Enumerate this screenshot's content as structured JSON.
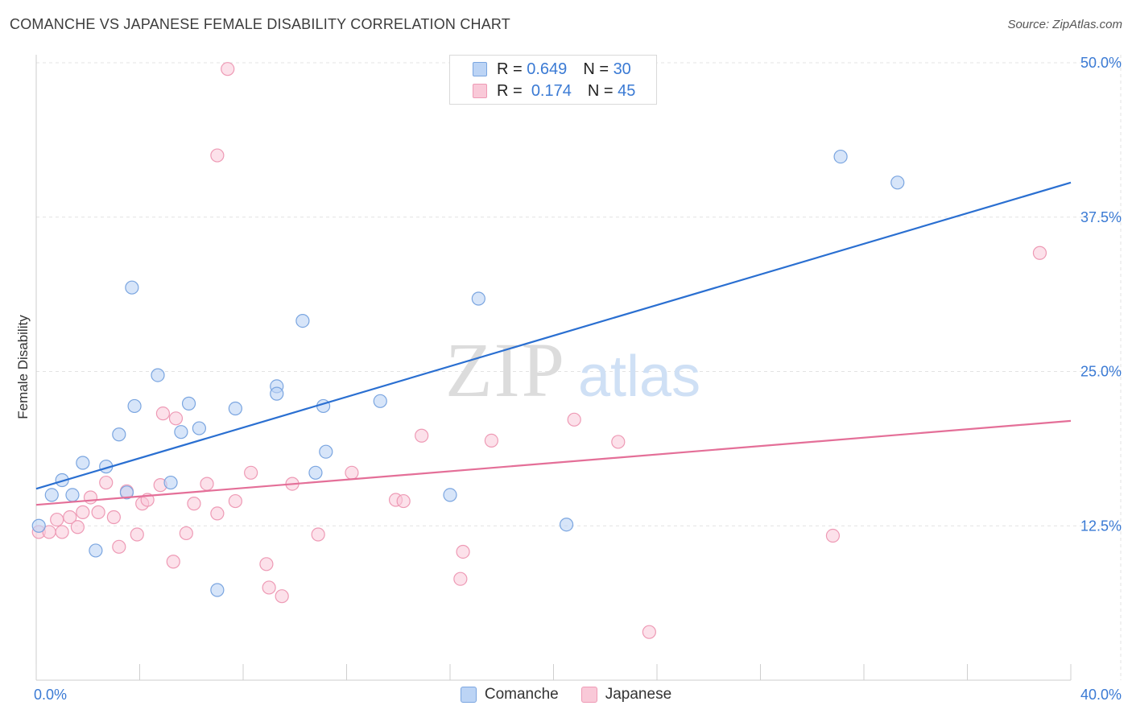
{
  "header": {
    "title": "COMANCHE VS JAPANESE FEMALE DISABILITY CORRELATION CHART",
    "source": "Source: ZipAtlas.com"
  },
  "watermark": {
    "zip": "ZIP",
    "atlas": "atlas"
  },
  "legend": {
    "items": [
      {
        "r_label": "R =",
        "r_value": "0.649",
        "n_label": "N =",
        "n_value": "30",
        "color": "#a9c8f0"
      },
      {
        "r_label": "R =",
        "r_value": "0.174",
        "n_label": "N =",
        "n_value": "45",
        "color": "#f6b5c9"
      }
    ]
  },
  "bottom_legend": {
    "items": [
      "Comanche",
      "Japanese"
    ]
  },
  "colors": {
    "comanche_fill": "#bcd4f5",
    "comanche_stroke": "#7aa5e0",
    "comanche_line": "#2a6fd1",
    "japanese_fill": "#f9c9d8",
    "japanese_stroke": "#ee9ab5",
    "japanese_line": "#e46f98",
    "tick_text": "#3a7ad4"
  },
  "chart_data": {
    "type": "scatter",
    "title": "COMANCHE VS JAPANESE FEMALE DISABILITY CORRELATION CHART",
    "xlabel": "",
    "ylabel": "Female Disability",
    "xlim": [
      0,
      40
    ],
    "ylim": [
      0,
      50
    ],
    "x_tick_labels": [
      "0.0%",
      "40.0%"
    ],
    "y_ticks": [
      12.5,
      25.0,
      37.5,
      50.0
    ],
    "y_tick_labels": [
      "12.5%",
      "25.0%",
      "37.5%",
      "50.0%"
    ],
    "grid": true,
    "legend_position": "top-center",
    "series": [
      {
        "name": "Comanche",
        "points": [
          [
            0.1,
            12.5
          ],
          [
            0.6,
            15.0
          ],
          [
            1.0,
            16.2
          ],
          [
            1.4,
            15.0
          ],
          [
            1.8,
            17.6
          ],
          [
            2.3,
            10.5
          ],
          [
            2.7,
            17.3
          ],
          [
            3.2,
            19.9
          ],
          [
            3.5,
            15.2
          ],
          [
            3.7,
            31.8
          ],
          [
            3.8,
            22.2
          ],
          [
            4.7,
            24.7
          ],
          [
            5.2,
            16.0
          ],
          [
            5.6,
            20.1
          ],
          [
            5.9,
            22.4
          ],
          [
            6.3,
            20.4
          ],
          [
            7.0,
            7.3
          ],
          [
            7.7,
            22.0
          ],
          [
            9.3,
            23.8
          ],
          [
            9.3,
            23.2
          ],
          [
            10.3,
            29.1
          ],
          [
            10.8,
            16.8
          ],
          [
            11.1,
            22.2
          ],
          [
            11.2,
            18.5
          ],
          [
            13.3,
            22.6
          ],
          [
            16.0,
            15.0
          ],
          [
            17.1,
            30.9
          ],
          [
            20.5,
            12.6
          ],
          [
            31.1,
            42.4
          ],
          [
            33.3,
            40.3
          ]
        ],
        "trend": {
          "x": [
            0,
            40
          ],
          "y": [
            15.5,
            40.3
          ]
        }
      },
      {
        "name": "Japanese",
        "points": [
          [
            0.1,
            12.0
          ],
          [
            0.5,
            12.0
          ],
          [
            0.8,
            13.0
          ],
          [
            1.0,
            12.0
          ],
          [
            1.3,
            13.2
          ],
          [
            1.6,
            12.4
          ],
          [
            1.8,
            13.6
          ],
          [
            2.1,
            14.8
          ],
          [
            2.4,
            13.6
          ],
          [
            2.7,
            16.0
          ],
          [
            3.0,
            13.2
          ],
          [
            3.2,
            10.8
          ],
          [
            3.5,
            15.3
          ],
          [
            3.9,
            11.8
          ],
          [
            4.1,
            14.3
          ],
          [
            4.3,
            14.6
          ],
          [
            4.8,
            15.8
          ],
          [
            4.9,
            21.6
          ],
          [
            5.3,
            9.6
          ],
          [
            5.4,
            21.2
          ],
          [
            5.8,
            11.9
          ],
          [
            6.1,
            14.3
          ],
          [
            6.6,
            15.9
          ],
          [
            7.0,
            13.5
          ],
          [
            7.4,
            49.5
          ],
          [
            7.7,
            14.5
          ],
          [
            7.0,
            42.5
          ],
          [
            8.3,
            16.8
          ],
          [
            8.9,
            9.4
          ],
          [
            9.0,
            7.5
          ],
          [
            9.5,
            6.8
          ],
          [
            9.9,
            15.9
          ],
          [
            10.9,
            11.8
          ],
          [
            12.2,
            16.8
          ],
          [
            13.9,
            14.6
          ],
          [
            14.2,
            14.5
          ],
          [
            14.9,
            19.8
          ],
          [
            16.4,
            8.2
          ],
          [
            16.5,
            10.4
          ],
          [
            17.6,
            19.4
          ],
          [
            20.8,
            21.1
          ],
          [
            22.5,
            19.3
          ],
          [
            23.7,
            3.9
          ],
          [
            30.8,
            11.7
          ],
          [
            38.8,
            34.6
          ]
        ],
        "trend": {
          "x": [
            0,
            40
          ],
          "y": [
            14.2,
            21.0
          ]
        }
      }
    ]
  }
}
